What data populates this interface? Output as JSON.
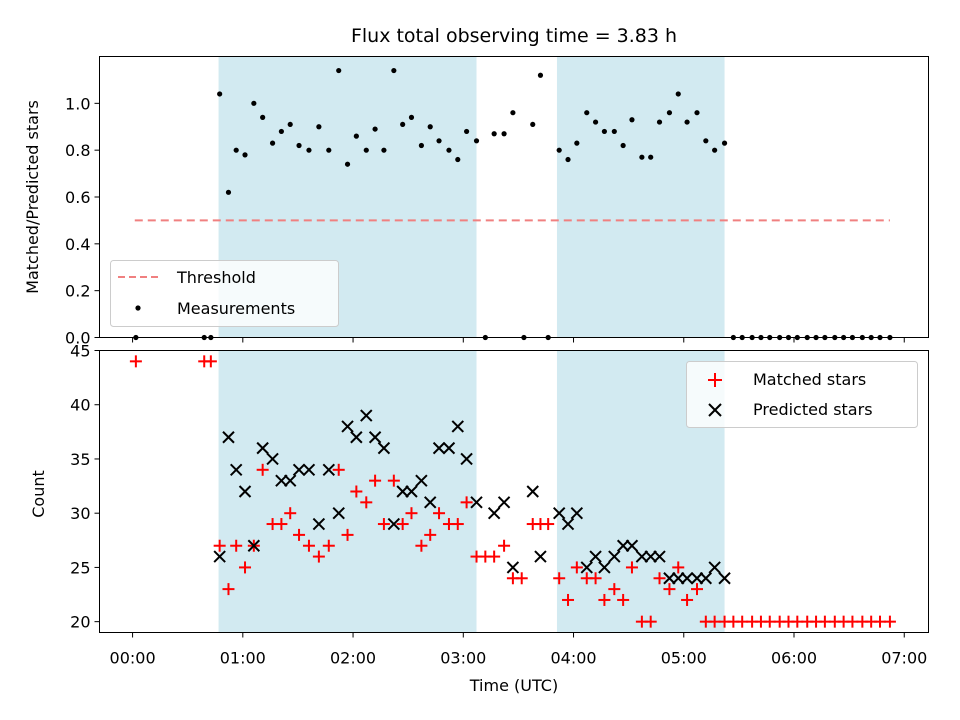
{
  "chart_data": {
    "title": "Flux total observing time = 3.83 h",
    "xlabel": "Time (UTC)",
    "xlim": [
      -0.3,
      7.22
    ],
    "x_ticks": [
      0,
      1,
      2,
      3,
      4,
      5,
      6,
      7
    ],
    "x_tick_labels": [
      "00:00",
      "01:00",
      "02:00",
      "03:00",
      "04:00",
      "05:00",
      "06:00",
      "07:00"
    ],
    "shaded_spans": [
      [
        0.78,
        3.12
      ],
      [
        3.85,
        5.37
      ]
    ],
    "shade_color": "#add8e6",
    "panels": [
      {
        "type": "scatter",
        "ylabel": "Matched/Predicted stars",
        "ylim": [
          0,
          1.2
        ],
        "y_ticks": [
          0,
          0.2,
          0.4,
          0.6,
          0.8,
          1.0
        ],
        "y_tick_labels": [
          "0.0",
          "0.2",
          "0.4",
          "0.6",
          "0.8",
          "1.0"
        ],
        "legend": [
          "Threshold",
          "Measurements"
        ],
        "legend_position": "lower-left",
        "threshold": {
          "name": "Threshold",
          "y": 0.5,
          "x_range": [
            0.02,
            6.87
          ],
          "color": "#f08080"
        },
        "series": [
          {
            "name": "Measurements",
            "color": "#000000",
            "points": [
              [
                0.03,
                0.0
              ],
              [
                0.65,
                0.0
              ],
              [
                0.71,
                0.0
              ],
              [
                0.79,
                1.04
              ],
              [
                0.87,
                0.62
              ],
              [
                0.94,
                0.8
              ],
              [
                1.02,
                0.78
              ],
              [
                1.1,
                1.0
              ],
              [
                1.18,
                0.94
              ],
              [
                1.27,
                0.83
              ],
              [
                1.35,
                0.88
              ],
              [
                1.43,
                0.91
              ],
              [
                1.51,
                0.82
              ],
              [
                1.6,
                0.8
              ],
              [
                1.69,
                0.9
              ],
              [
                1.78,
                0.8
              ],
              [
                1.87,
                1.14
              ],
              [
                1.95,
                0.74
              ],
              [
                2.03,
                0.86
              ],
              [
                2.12,
                0.8
              ],
              [
                2.2,
                0.89
              ],
              [
                2.28,
                0.8
              ],
              [
                2.37,
                1.14
              ],
              [
                2.45,
                0.91
              ],
              [
                2.53,
                0.94
              ],
              [
                2.62,
                0.82
              ],
              [
                2.7,
                0.9
              ],
              [
                2.78,
                0.84
              ],
              [
                2.87,
                0.8
              ],
              [
                2.95,
                0.76
              ],
              [
                3.03,
                0.88
              ],
              [
                3.12,
                0.84
              ],
              [
                3.2,
                0.0
              ],
              [
                3.28,
                0.87
              ],
              [
                3.37,
                0.87
              ],
              [
                3.45,
                0.96
              ],
              [
                3.55,
                0.0
              ],
              [
                3.63,
                0.91
              ],
              [
                3.7,
                1.12
              ],
              [
                3.77,
                0.0
              ],
              [
                3.87,
                0.8
              ],
              [
                3.95,
                0.76
              ],
              [
                4.03,
                0.83
              ],
              [
                4.12,
                0.96
              ],
              [
                4.2,
                0.92
              ],
              [
                4.28,
                0.88
              ],
              [
                4.37,
                0.88
              ],
              [
                4.45,
                0.82
              ],
              [
                4.53,
                0.93
              ],
              [
                4.62,
                0.77
              ],
              [
                4.7,
                0.77
              ],
              [
                4.78,
                0.92
              ],
              [
                4.87,
                0.96
              ],
              [
                4.95,
                1.04
              ],
              [
                5.03,
                0.92
              ],
              [
                5.12,
                0.96
              ],
              [
                5.2,
                0.84
              ],
              [
                5.28,
                0.8
              ],
              [
                5.37,
                0.83
              ],
              [
                5.45,
                0.0
              ],
              [
                5.53,
                0.0
              ],
              [
                5.62,
                0.0
              ],
              [
                5.7,
                0.0
              ],
              [
                5.78,
                0.0
              ],
              [
                5.87,
                0.0
              ],
              [
                5.95,
                0.0
              ],
              [
                6.03,
                0.0
              ],
              [
                6.12,
                0.0
              ],
              [
                6.2,
                0.0
              ],
              [
                6.28,
                0.0
              ],
              [
                6.37,
                0.0
              ],
              [
                6.45,
                0.0
              ],
              [
                6.53,
                0.0
              ],
              [
                6.62,
                0.0
              ],
              [
                6.7,
                0.0
              ],
              [
                6.78,
                0.0
              ],
              [
                6.87,
                0.0
              ]
            ]
          }
        ]
      },
      {
        "type": "scatter",
        "ylabel": "Count",
        "ylim": [
          19,
          45
        ],
        "y_ticks": [
          20,
          25,
          30,
          35,
          40,
          45
        ],
        "y_tick_labels": [
          "20",
          "25",
          "30",
          "35",
          "40",
          "45"
        ],
        "legend": [
          "Matched stars",
          "Predicted stars"
        ],
        "legend_position": "upper-right",
        "series": [
          {
            "name": "Matched stars",
            "marker": "plus",
            "color": "#ff0000",
            "points": [
              [
                0.03,
                44
              ],
              [
                0.65,
                44
              ],
              [
                0.71,
                44
              ],
              [
                0.79,
                27
              ],
              [
                0.87,
                23
              ],
              [
                0.94,
                27
              ],
              [
                1.02,
                25
              ],
              [
                1.1,
                27
              ],
              [
                1.18,
                34
              ],
              [
                1.27,
                29
              ],
              [
                1.35,
                29
              ],
              [
                1.43,
                30
              ],
              [
                1.51,
                28
              ],
              [
                1.6,
                27
              ],
              [
                1.69,
                26
              ],
              [
                1.78,
                27
              ],
              [
                1.87,
                34
              ],
              [
                1.95,
                28
              ],
              [
                2.03,
                32
              ],
              [
                2.12,
                31
              ],
              [
                2.2,
                33
              ],
              [
                2.28,
                29
              ],
              [
                2.37,
                33
              ],
              [
                2.45,
                29
              ],
              [
                2.53,
                30
              ],
              [
                2.62,
                27
              ],
              [
                2.7,
                28
              ],
              [
                2.78,
                30
              ],
              [
                2.87,
                29
              ],
              [
                2.95,
                29
              ],
              [
                3.03,
                31
              ],
              [
                3.12,
                26
              ],
              [
                3.2,
                26
              ],
              [
                3.28,
                26
              ],
              [
                3.37,
                27
              ],
              [
                3.45,
                24
              ],
              [
                3.53,
                24
              ],
              [
                3.63,
                29
              ],
              [
                3.7,
                29
              ],
              [
                3.77,
                29
              ],
              [
                3.87,
                24
              ],
              [
                3.95,
                22
              ],
              [
                4.03,
                25
              ],
              [
                4.12,
                24
              ],
              [
                4.2,
                24
              ],
              [
                4.28,
                22
              ],
              [
                4.37,
                23
              ],
              [
                4.45,
                22
              ],
              [
                4.53,
                25
              ],
              [
                4.62,
                20
              ],
              [
                4.7,
                20
              ],
              [
                4.78,
                24
              ],
              [
                4.87,
                23
              ],
              [
                4.95,
                25
              ],
              [
                5.03,
                22
              ],
              [
                5.12,
                23
              ],
              [
                5.2,
                20
              ],
              [
                5.28,
                20
              ],
              [
                5.37,
                20
              ],
              [
                5.45,
                20
              ],
              [
                5.53,
                20
              ],
              [
                5.62,
                20
              ],
              [
                5.7,
                20
              ],
              [
                5.78,
                20
              ],
              [
                5.87,
                20
              ],
              [
                5.95,
                20
              ],
              [
                6.03,
                20
              ],
              [
                6.12,
                20
              ],
              [
                6.2,
                20
              ],
              [
                6.28,
                20
              ],
              [
                6.37,
                20
              ],
              [
                6.45,
                20
              ],
              [
                6.53,
                20
              ],
              [
                6.62,
                20
              ],
              [
                6.7,
                20
              ],
              [
                6.78,
                20
              ],
              [
                6.87,
                20
              ]
            ]
          },
          {
            "name": "Predicted stars",
            "marker": "x",
            "color": "#000000",
            "points": [
              [
                0.79,
                26
              ],
              [
                0.87,
                37
              ],
              [
                0.94,
                34
              ],
              [
                1.02,
                32
              ],
              [
                1.1,
                27
              ],
              [
                1.18,
                36
              ],
              [
                1.27,
                35
              ],
              [
                1.35,
                33
              ],
              [
                1.43,
                33
              ],
              [
                1.51,
                34
              ],
              [
                1.6,
                34
              ],
              [
                1.69,
                29
              ],
              [
                1.78,
                34
              ],
              [
                1.87,
                30
              ],
              [
                1.95,
                38
              ],
              [
                2.03,
                37
              ],
              [
                2.12,
                39
              ],
              [
                2.2,
                37
              ],
              [
                2.28,
                36
              ],
              [
                2.37,
                29
              ],
              [
                2.45,
                32
              ],
              [
                2.53,
                32
              ],
              [
                2.62,
                33
              ],
              [
                2.7,
                31
              ],
              [
                2.78,
                36
              ],
              [
                2.87,
                36
              ],
              [
                2.95,
                38
              ],
              [
                3.03,
                35
              ],
              [
                3.12,
                31
              ],
              [
                3.28,
                30
              ],
              [
                3.37,
                31
              ],
              [
                3.45,
                25
              ],
              [
                3.63,
                32
              ],
              [
                3.7,
                26
              ],
              [
                3.87,
                30
              ],
              [
                3.95,
                29
              ],
              [
                4.03,
                30
              ],
              [
                4.12,
                25
              ],
              [
                4.2,
                26
              ],
              [
                4.28,
                25
              ],
              [
                4.37,
                26
              ],
              [
                4.45,
                27
              ],
              [
                4.53,
                27
              ],
              [
                4.62,
                26
              ],
              [
                4.7,
                26
              ],
              [
                4.78,
                26
              ],
              [
                4.87,
                24
              ],
              [
                4.95,
                24
              ],
              [
                5.03,
                24
              ],
              [
                5.12,
                24
              ],
              [
                5.2,
                24
              ],
              [
                5.28,
                25
              ],
              [
                5.37,
                24
              ]
            ]
          }
        ]
      }
    ]
  }
}
